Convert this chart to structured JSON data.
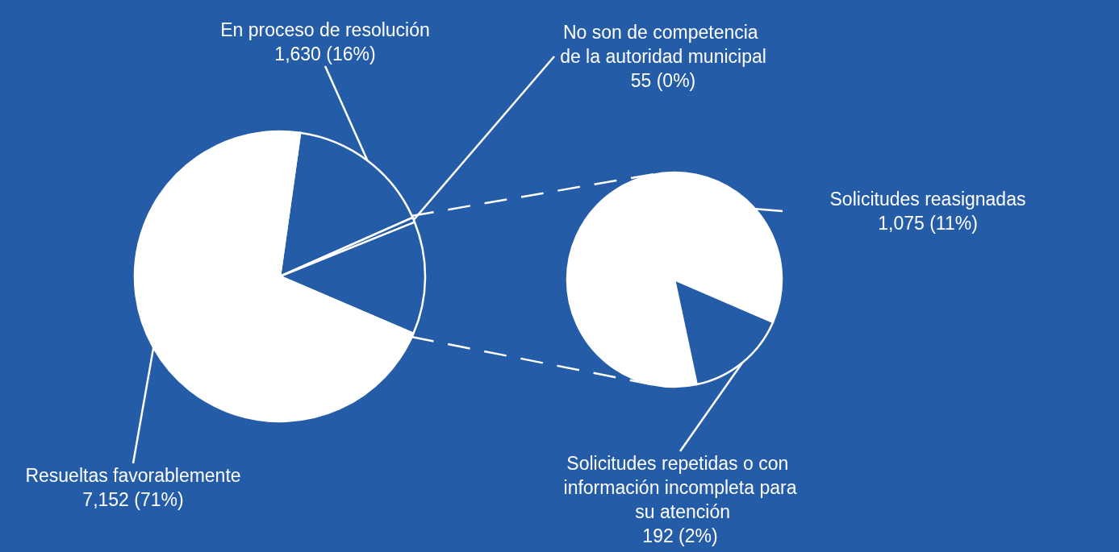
{
  "chart_data": [
    {
      "type": "pie",
      "categories": [
        "En proceso de resolución",
        "No son de competencia de la autoridad municipal",
        null,
        "Resueltas favorablemente"
      ],
      "values": [
        1630,
        55,
        1267,
        7152
      ],
      "colors": [
        "#255ca7",
        "#255ca7",
        "#255ca7",
        "#ffffff"
      ],
      "value_labels": [
        "1,630 (16%)",
        "55 (0%)",
        null,
        "7,152 (71%)"
      ]
    },
    {
      "type": "pie",
      "categories": [
        "Solicitudes reasignadas",
        "Solicitudes repetidas o con información incompleta para su atención"
      ],
      "values": [
        1075,
        192
      ],
      "colors": [
        "#ffffff",
        "#255ca7"
      ],
      "value_labels": [
        "1,075 (11%)",
        "192 (2%)"
      ]
    }
  ]
}
